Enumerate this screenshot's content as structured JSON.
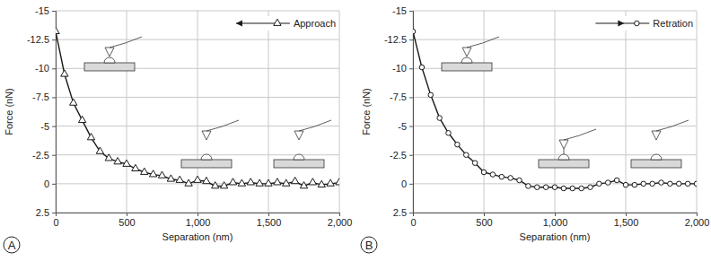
{
  "chart_data": [
    {
      "type": "line",
      "annotations": [
        "A"
      ],
      "x_label": "Separation (nm)",
      "y_label": "Force (nN)",
      "x": [
        0,
        62.5,
        125,
        187.5,
        250,
        312.5,
        375,
        437.5,
        500,
        562.5,
        625,
        687.5,
        750,
        812.5,
        875,
        937.5,
        1000,
        1062.5,
        1125,
        1187.5,
        1250,
        1312.5,
        1375,
        1437.5,
        1500,
        1562.5,
        1625,
        1687.5,
        1750,
        1812.5,
        1875,
        1937.5,
        2000
      ],
      "series": [
        {
          "name": "Approach",
          "color": "#1a1a1a",
          "marker": "triangle",
          "line_style": "solid",
          "values": [
            -13.2,
            -9.5,
            -7.0,
            -5.5,
            -4.0,
            -2.8,
            -2.2,
            -1.9,
            -1.7,
            -1.3,
            -1.0,
            -0.8,
            -0.7,
            -0.4,
            -0.3,
            0.0,
            -0.3,
            -0.2,
            0.2,
            0.2,
            -0.1,
            0.0,
            -0.1,
            0.0,
            0.0,
            -0.1,
            0.0,
            -0.2,
            0.2,
            -0.1,
            0.1,
            0.0,
            -0.1
          ]
        }
      ],
      "xlim": [
        0,
        2000
      ],
      "xticks": [
        0,
        500,
        {
          "value": 1000,
          "label": "1,000"
        },
        {
          "value": 1500,
          "label": "1,500"
        },
        {
          "value": 2000,
          "label": "2,000"
        }
      ],
      "ylim": [
        2.5,
        -15
      ],
      "yticks": [
        -15,
        -12.5,
        -10,
        -7.5,
        -5,
        -2.5,
        0,
        2.5
      ],
      "grid": true,
      "legend": "upper right"
    },
    {
      "type": "line",
      "annotations": [
        "B"
      ],
      "x_label": "Separation (nm)",
      "y_label": "Force (nN)",
      "x": [
        0,
        62.5,
        125,
        187.5,
        250,
        312.5,
        375,
        437.5,
        500,
        562.5,
        625,
        687.5,
        750,
        812.5,
        875,
        937.5,
        1000,
        1062.5,
        1125,
        1187.5,
        1250,
        1312.5,
        1375,
        1437.5,
        1500,
        1562.5,
        1625,
        1687.5,
        1750,
        1812.5,
        1875,
        1937.5,
        2000
      ],
      "series": [
        {
          "name": "Retration",
          "color": "#1a1a1a",
          "marker": "circle",
          "line_style": "solid",
          "values": [
            -13.2,
            -10.1,
            -7.7,
            -5.7,
            -4.4,
            -3.4,
            -2.5,
            -1.8,
            -1.0,
            -0.8,
            -0.6,
            -0.5,
            -0.3,
            0.2,
            0.3,
            0.3,
            0.3,
            0.4,
            0.4,
            0.4,
            0.3,
            0.0,
            -0.1,
            -0.3,
            0.1,
            0.1,
            0.0,
            0.0,
            -0.1,
            0.0,
            0.0,
            0.0,
            0.0
          ]
        }
      ],
      "xlim": [
        0,
        2000
      ],
      "xticks": [
        0,
        500,
        {
          "value": 1000,
          "label": "1,000"
        },
        {
          "value": 1500,
          "label": "1,500"
        },
        {
          "value": 2000,
          "label": "2,000"
        }
      ],
      "ylim": [
        2.5,
        -15
      ],
      "yticks": [
        -15,
        -12.5,
        -10,
        -7.5,
        -5,
        -2.5,
        0,
        2.5
      ],
      "grid": true,
      "legend": "upper right"
    }
  ]
}
